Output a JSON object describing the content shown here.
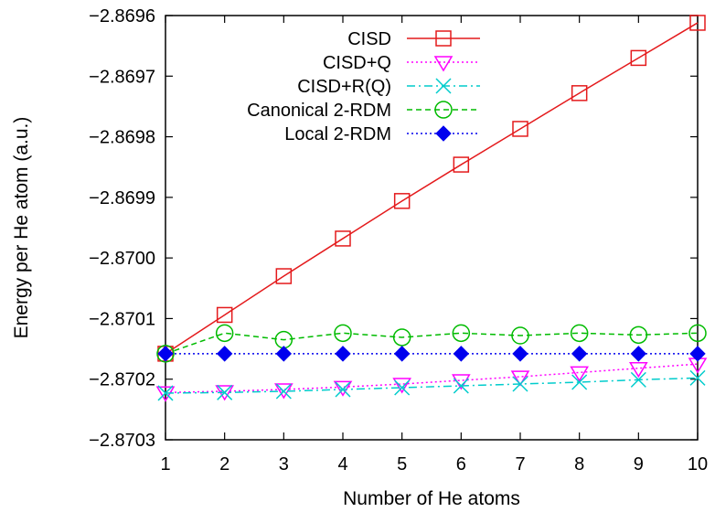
{
  "chart_data": {
    "type": "line",
    "title": "",
    "xlabel": "Number of He atoms",
    "ylabel": "Energy per He atom (a.u.)",
    "xlim": [
      1,
      10
    ],
    "ylim": [
      -2.8703,
      -2.8696
    ],
    "x_ticks": [
      "1",
      "2",
      "3",
      "4",
      "5",
      "6",
      "7",
      "8",
      "9",
      "10"
    ],
    "y_ticks": [
      "−2.8696",
      "−2.8697",
      "−2.8698",
      "−2.8699",
      "−2.8700",
      "−2.8701",
      "−2.8702",
      "−2.8703"
    ],
    "grid": false,
    "legend_position": "top-left",
    "x": [
      1,
      2,
      3,
      4,
      5,
      6,
      7,
      8,
      9,
      10
    ],
    "series": [
      {
        "name": "CISD",
        "marker": "open-square",
        "line": "solid",
        "color": "#e41a1c",
        "values": [
          -2.870158,
          -2.870094,
          -2.87003,
          -2.869968,
          -2.869906,
          -2.869846,
          -2.869787,
          -2.869728,
          -2.86967,
          -2.869612
        ]
      },
      {
        "name": "CISD+Q",
        "marker": "open-triangle-down",
        "line": "dotted",
        "color": "#ff00ff",
        "values": [
          -2.870222,
          -2.87022,
          -2.870217,
          -2.870213,
          -2.870208,
          -2.870202,
          -2.870196,
          -2.870189,
          -2.870182,
          -2.870175
        ]
      },
      {
        "name": "CISD+R(Q)",
        "marker": "x",
        "line": "dash-dot",
        "color": "#00cccc",
        "values": [
          -2.870223,
          -2.870222,
          -2.87022,
          -2.870217,
          -2.870214,
          -2.870211,
          -2.870208,
          -2.870205,
          -2.870201,
          -2.870198
        ]
      },
      {
        "name": "Canonical 2-RDM",
        "marker": "open-circle",
        "line": "dashed",
        "color": "#00bb00",
        "values": [
          -2.870158,
          -2.870124,
          -2.870135,
          -2.870124,
          -2.870131,
          -2.870124,
          -2.870128,
          -2.870124,
          -2.870127,
          -2.870124
        ]
      },
      {
        "name": "Local 2-RDM",
        "marker": "filled-diamond",
        "line": "dotted",
        "color": "#0000ee",
        "values": [
          -2.870158,
          -2.870158,
          -2.870158,
          -2.870158,
          -2.870158,
          -2.870158,
          -2.870158,
          -2.870158,
          -2.870158,
          -2.870158
        ]
      }
    ]
  }
}
